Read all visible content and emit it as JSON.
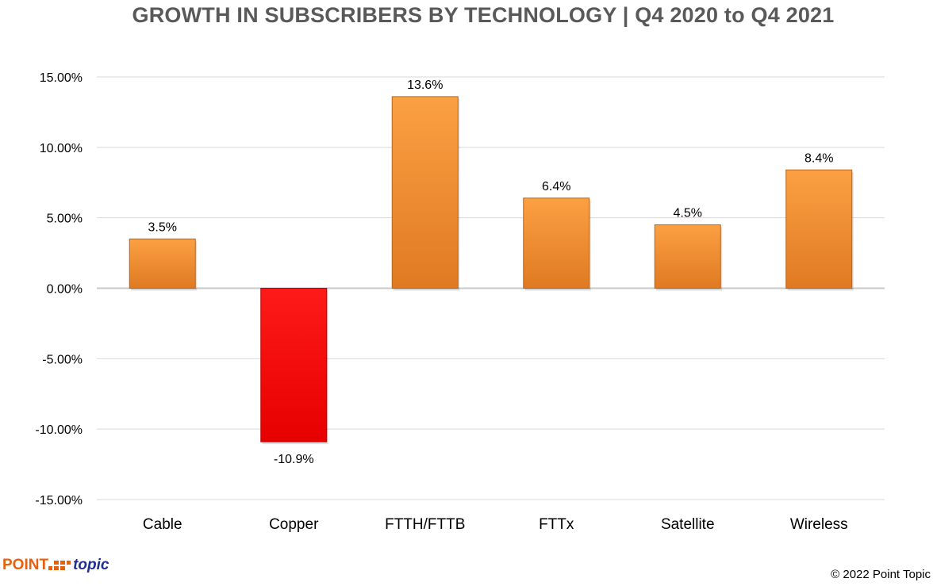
{
  "chart_data": {
    "type": "bar",
    "title": "GROWTH IN SUBSCRIBERS BY TECHNOLOGY  | Q4 2020 to Q4 2021",
    "categories": [
      "Cable",
      "Copper",
      "FTTH/FTTB",
      "FTTx",
      "Satellite",
      "Wireless"
    ],
    "values": [
      3.5,
      -10.9,
      13.6,
      6.4,
      4.5,
      8.4
    ],
    "data_labels": [
      "3.5%",
      "-10.9%",
      "13.6%",
      "6.4%",
      "4.5%",
      "8.4%"
    ],
    "xlabel": "",
    "ylabel": "",
    "ylim": [
      -15,
      15
    ],
    "yticks": [
      15,
      10,
      5,
      0,
      -5,
      -10,
      -15
    ],
    "ytick_labels": [
      "15.00%",
      "10.00%",
      "5.00%",
      "0.00%",
      "-5.00%",
      "-10.00%",
      "-15.00%"
    ],
    "grid": true,
    "colors": {
      "positive": "#f7962e",
      "negative": "#ff0000"
    }
  },
  "footer": {
    "logo_point": "POINT",
    "logo_topic": "topic",
    "copyright": "© 2022 Point Topic"
  }
}
